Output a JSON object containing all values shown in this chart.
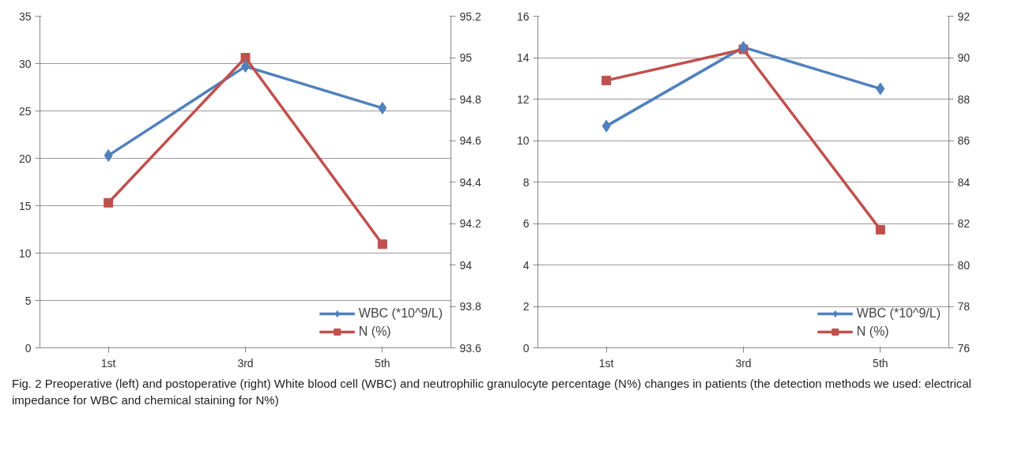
{
  "chart_data": [
    {
      "type": "line",
      "categories": [
        "1st",
        "3rd",
        "5th"
      ],
      "ylim": [
        0,
        35
      ],
      "yticks": [
        0,
        5,
        10,
        15,
        20,
        25,
        30,
        35
      ],
      "y2lim": [
        93.6,
        95.2
      ],
      "y2ticks": [
        {
          "value": 93.6,
          "label": "93.6"
        },
        {
          "value": 93.8,
          "label": "93.8"
        },
        {
          "value": 94.0,
          "label": "94"
        },
        {
          "value": 94.2,
          "label": "94.2"
        },
        {
          "value": 94.4,
          "label": "94.4"
        },
        {
          "value": 94.6,
          "label": "94.6"
        },
        {
          "value": 94.8,
          "label": "94.8"
        },
        {
          "value": 95.0,
          "label": "95"
        },
        {
          "value": 95.2,
          "label": "95.2"
        }
      ],
      "grid": "y",
      "legend": "bottom right",
      "series": [
        {
          "name": "WBC (*10^9/L)",
          "color": "#4f81bd",
          "marker": "diamond",
          "values": [
            20.3,
            29.7,
            25.3
          ]
        },
        {
          "name": "N (%)",
          "color": "#c0504d",
          "marker": "square",
          "axis": "y2",
          "values": [
            94.3,
            95.0,
            94.1
          ]
        }
      ]
    },
    {
      "type": "line",
      "categories": [
        "1st",
        "3rd",
        "5th"
      ],
      "ylim": [
        0,
        16
      ],
      "yticks": [
        0,
        2,
        4,
        6,
        8,
        10,
        12,
        14,
        16
      ],
      "y2lim": [
        76,
        92
      ],
      "y2ticks": [
        76,
        78,
        80,
        82,
        84,
        86,
        88,
        90,
        92
      ],
      "grid": "y",
      "legend": "bottom right",
      "annotations": [
        "Fig. 2 Preoperative (left) and postoperative (right) White blood cell (WBC) and neutrophilic granulocyte percentage (N%) changes in patients (the detection methods we used: electrical impedance for WBC and chemical staining for N%)"
      ],
      "series": [
        {
          "name": "WBC (*10^9/L)",
          "color": "#4f81bd",
          "marker": "diamond",
          "values": [
            10.7,
            14.5,
            12.5
          ]
        },
        {
          "name": "N (%)",
          "color": "#c0504d",
          "marker": "square",
          "axis": "y2",
          "values": [
            88.9,
            90.4,
            81.7
          ]
        }
      ]
    }
  ]
}
